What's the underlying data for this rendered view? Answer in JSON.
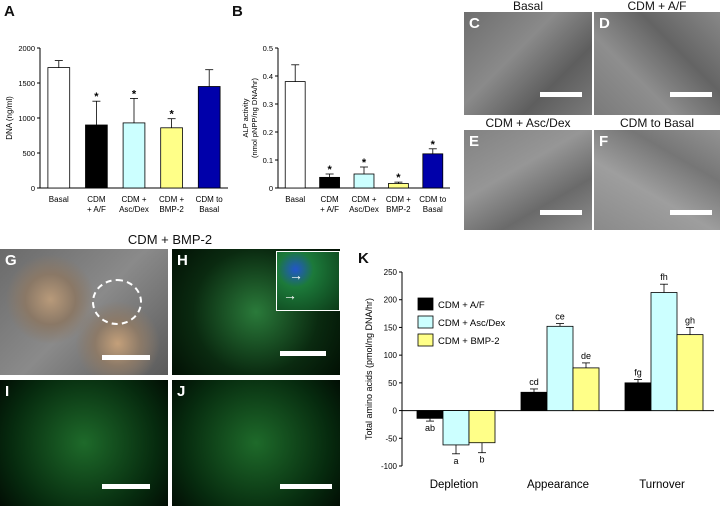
{
  "panels": {
    "A": "A",
    "B": "B",
    "C": "C",
    "D": "D",
    "E": "E",
    "F": "F",
    "G": "G",
    "H": "H",
    "I": "I",
    "J": "J",
    "K": "K"
  },
  "photo_titles": {
    "C": "Basal",
    "D": "CDM + A/F",
    "E": "CDM + Asc/Dex",
    "F": "CDM to Basal",
    "group": "CDM + BMP-2"
  },
  "chart_data": [
    {
      "id": "A",
      "type": "bar",
      "categories": [
        "Basal",
        "CDM\n+ A/F",
        "CDM +\nAsc/Dex",
        "CDM +\nBMP-2",
        "CDM to\nBasal"
      ],
      "values": [
        1720,
        900,
        930,
        860,
        1450
      ],
      "errors": [
        100,
        340,
        350,
        130,
        240
      ],
      "significance": [
        "",
        "*",
        "*",
        "*",
        ""
      ],
      "colors": [
        "#ffffff",
        "#000000",
        "#ccffff",
        "#ffff88",
        "#0000aa"
      ],
      "ylabel": "DNA (ng/ml)",
      "ylim": [
        0,
        2000
      ],
      "yticks": [
        0,
        500,
        1000,
        1500,
        2000
      ]
    },
    {
      "id": "B",
      "type": "bar",
      "categories": [
        "Basal",
        "CDM\n+ A/F",
        "CDM +\nAsc/Dex",
        "CDM +\nBMP-2",
        "CDM to\nBasal"
      ],
      "values": [
        0.38,
        0.038,
        0.05,
        0.016,
        0.122
      ],
      "errors": [
        0.06,
        0.012,
        0.025,
        0.005,
        0.018
      ],
      "significance": [
        "",
        "*",
        "*",
        "*",
        "*"
      ],
      "colors": [
        "#ffffff",
        "#000000",
        "#ccffff",
        "#ffff88",
        "#0000aa"
      ],
      "ylabel_lines": [
        "ALP activity",
        "(nmol pNPP/ng DNA/hr)"
      ],
      "ylim": [
        0,
        0.5
      ],
      "yticks": [
        0,
        0.1,
        0.2,
        0.3,
        0.4,
        0.5
      ]
    },
    {
      "id": "K",
      "type": "bar",
      "categories": [
        "Depletion",
        "Appearance",
        "Turnover"
      ],
      "series": [
        {
          "name": "CDM + A/F",
          "color": "#000000",
          "values": [
            -14,
            33,
            50
          ],
          "errors": [
            5,
            6,
            6
          ],
          "letters": [
            "ab",
            "cd",
            "fg"
          ]
        },
        {
          "name": "CDM + Asc/Dex",
          "color": "#ccffff",
          "values": [
            -62,
            152,
            213
          ],
          "errors": [
            16,
            5,
            15
          ],
          "letters": [
            "a",
            "ce",
            "fh"
          ]
        },
        {
          "name": "CDM + BMP-2",
          "color": "#ffff88",
          "values": [
            -58,
            77,
            137
          ],
          "errors": [
            18,
            9,
            13
          ],
          "letters": [
            "b",
            "de",
            "gh"
          ]
        }
      ],
      "ylabel": "Total amino acids (pmol/ng DNA/hr)",
      "ylim": [
        -100,
        250
      ],
      "yticks": [
        -100,
        -50,
        0,
        50,
        100,
        150,
        200,
        250
      ],
      "legend": "top-left"
    }
  ]
}
